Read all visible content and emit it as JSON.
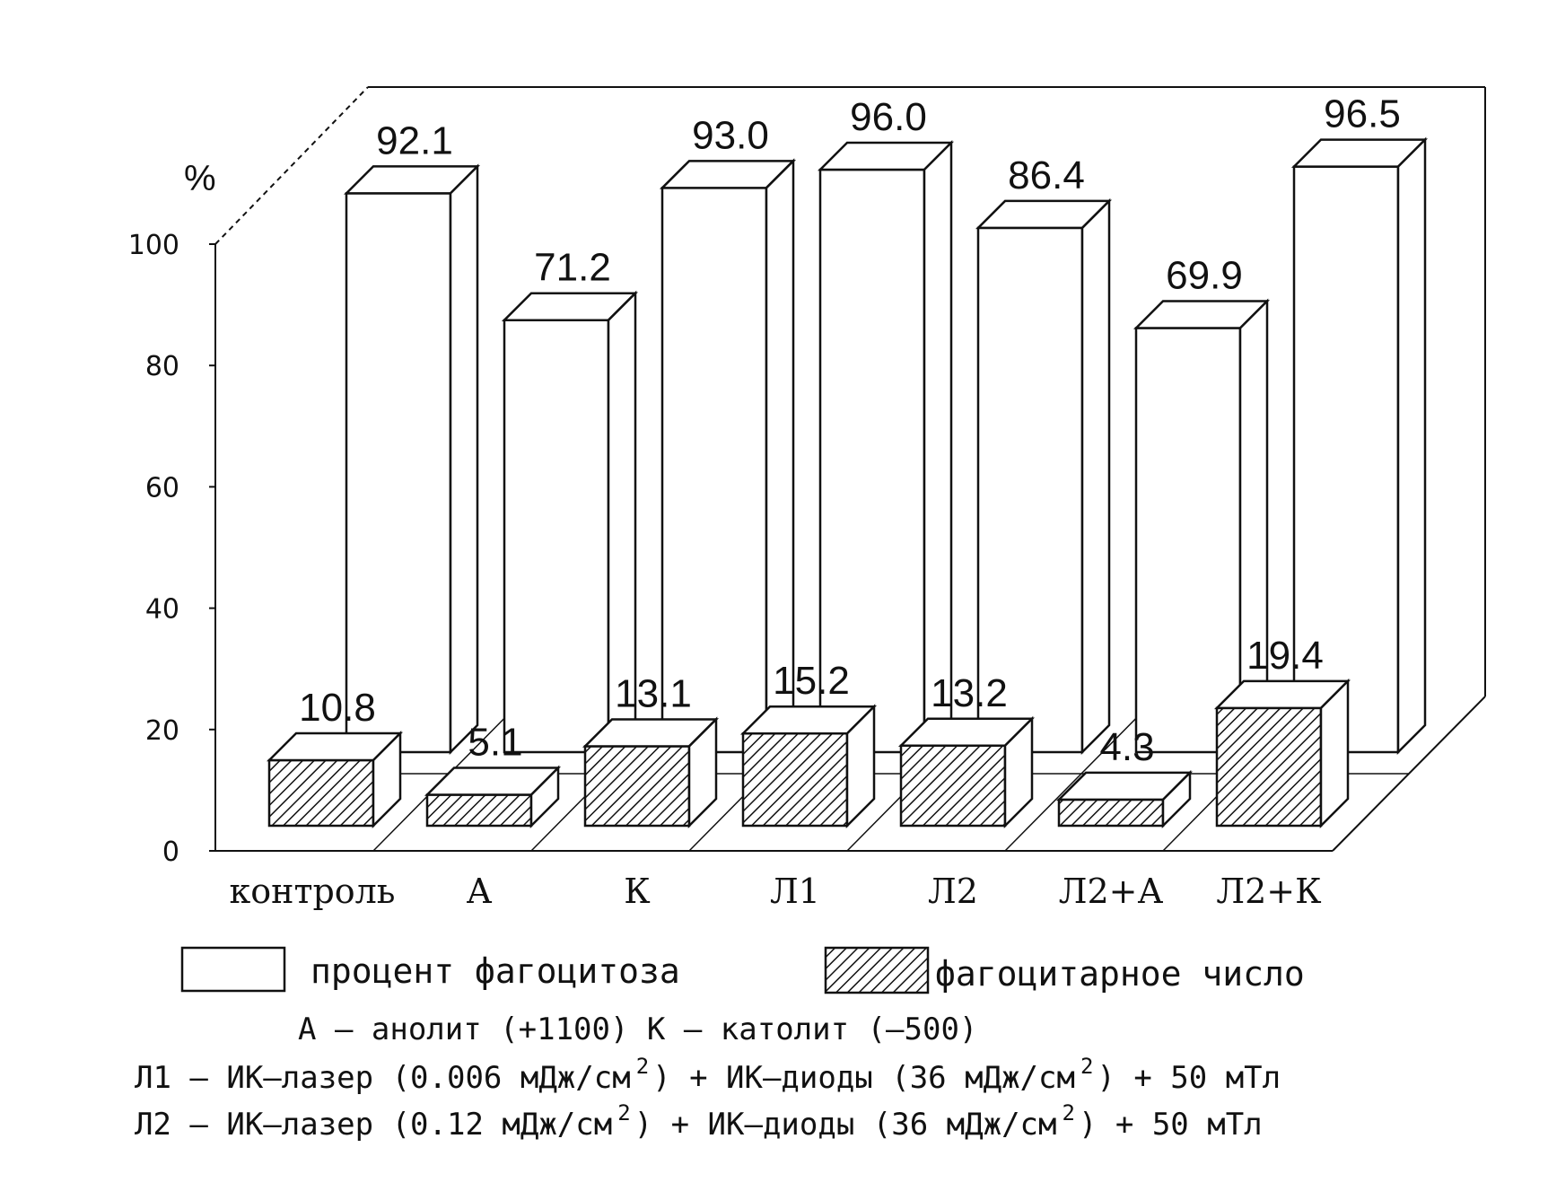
{
  "chart_data": {
    "type": "bar",
    "y_unit_label": "%",
    "ylim": [
      0,
      100
    ],
    "y_ticks": [
      "0",
      "20",
      "40",
      "60",
      "80",
      "100"
    ],
    "categories": [
      "контроль",
      "А",
      "К",
      "Л1",
      "Л2",
      "Л2+А",
      "Л2+К"
    ],
    "series": [
      {
        "name": "процент фагоцитоза",
        "values": [
          92.1,
          71.2,
          93.0,
          96.0,
          86.4,
          69.9,
          96.5
        ],
        "labels": [
          "92.1",
          "71.2",
          "93.0",
          "96.0",
          "86.4",
          "69.9",
          "96.5"
        ],
        "fill": "white"
      },
      {
        "name": "фагоцитарное число",
        "values": [
          10.8,
          5.1,
          13.1,
          15.2,
          13.2,
          4.3,
          19.4
        ],
        "labels": [
          "10.8",
          "5.1",
          "13.1",
          "15.2",
          "13.2",
          "4.3",
          "19.4"
        ],
        "fill": "hatched"
      }
    ],
    "legend_position": "bottom",
    "grid": false,
    "style": "3d"
  },
  "notes": {
    "line1": "А – анолит (+1100)    К – католит (–500)",
    "line2_a": "Л1 – ИК–лазер (0.006 мДж/см",
    "line2_b": ") + ИК–диоды (36 мДж/см",
    "line2_c": ") + 50 мТл",
    "line3_a": "Л2 – ИК–лазер (0.12  мДж/см",
    "line3_b": ") + ИК–диоды (36 мДж/см",
    "line3_c": ") + 50 мТл",
    "sup": "2"
  },
  "colors": {
    "ink": "#111111",
    "bar_fill": "#ffffff",
    "paper": "#ffffff"
  }
}
